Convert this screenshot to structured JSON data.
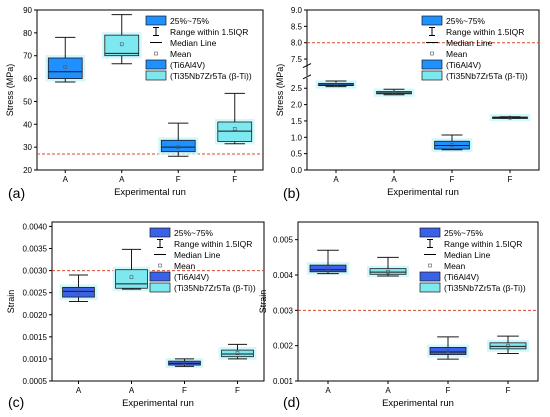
{
  "figure": {
    "legend_labels": [
      "25%~75%",
      "Range within 1.5IQR",
      "Median Line",
      "Mean",
      "(Ti6Al4V)",
      "(Ti35Nb7Zr5Ta (β-Ti))"
    ]
  },
  "colors": {
    "ti6al4v_box": "#1e90ff",
    "ti6al4v_box_dark": "#3a62e8",
    "beta_ti_box": "#7ee8f0",
    "highlight": "#c8f6fb",
    "threshold_line": "#d84a2a",
    "whisker": "#1a1a1a"
  },
  "chart_data": [
    {
      "panel": "(a)",
      "type": "box",
      "ylabel": "Stress (MPa)",
      "xlabel": "Experimental run",
      "categories": [
        "A",
        "A",
        "F",
        "F"
      ],
      "ylim": [
        20,
        90
      ],
      "yticks": [
        20,
        30,
        40,
        50,
        60,
        70,
        80,
        90
      ],
      "axis_break": null,
      "reference_line": 27,
      "legend_position": "top-right",
      "boxes": [
        {
          "group": "Ti6Al4V",
          "min": 58.5,
          "q1": 60,
          "median": 63,
          "q3": 69,
          "max": 78,
          "mean": 65
        },
        {
          "group": "Ti35Nb7Zr5Ta (β-Ti)",
          "min": 66.5,
          "q1": 70,
          "median": 71,
          "q3": 79,
          "max": 88,
          "mean": 75
        },
        {
          "group": "Ti6Al4V",
          "min": 26,
          "q1": 28,
          "median": 30,
          "q3": 33,
          "max": 40.5,
          "mean": 30
        },
        {
          "group": "Ti35Nb7Zr5Ta (β-Ti)",
          "min": 31.5,
          "q1": 32.5,
          "median": 37,
          "q3": 41,
          "max": 53.5,
          "mean": 38
        }
      ]
    },
    {
      "panel": "(b)",
      "type": "box",
      "ylabel": "Stress (MPa)",
      "xlabel": "Experimental run",
      "categories": [
        "A",
        "A",
        "F",
        "F"
      ],
      "ylim": [
        0,
        9
      ],
      "yticks": [
        0.0,
        0.5,
        1.0,
        1.5,
        2.0,
        2.5,
        7.5,
        8.0,
        8.5,
        9.0
      ],
      "ytick_labels": [
        "0.0",
        "0.5",
        "1.0",
        "1.5",
        "2.0",
        "2.5",
        "7.5",
        "8.0",
        "8.5",
        "9.0"
      ],
      "axis_break": [
        2.85,
        7.3
      ],
      "reference_line": 8.0,
      "legend_position": "top-right",
      "boxes": [
        {
          "group": "Ti6Al4V",
          "min": 2.55,
          "q1": 2.58,
          "median": 2.6,
          "q3": 2.65,
          "max": 2.72,
          "mean": 2.6
        },
        {
          "group": "Ti35Nb7Zr5Ta (β-Ti)",
          "min": 2.3,
          "q1": 2.33,
          "median": 2.36,
          "q3": 2.4,
          "max": 2.47,
          "mean": 2.36
        },
        {
          "group": "Ti6Al4V",
          "min": 0.62,
          "q1": 0.64,
          "median": 0.75,
          "q3": 0.88,
          "max": 1.07,
          "mean": 0.77
        },
        {
          "group": "Ti35Nb7Zr5Ta (β-Ti)",
          "min": 1.58,
          "q1": 1.59,
          "median": 1.6,
          "q3": 1.62,
          "max": 1.63,
          "mean": 1.6
        }
      ]
    },
    {
      "panel": "(c)",
      "type": "box",
      "ylabel": "Strain",
      "xlabel": "Experimental run",
      "categories": [
        "A",
        "A",
        "F",
        "F"
      ],
      "ylim": [
        0.0005,
        0.0041
      ],
      "yticks": [
        0.0005,
        0.001,
        0.0015,
        0.002,
        0.0025,
        0.003,
        0.0035,
        0.004
      ],
      "ytick_labels": [
        "0.0005",
        "0.0010",
        "0.0015",
        "0.0020",
        "0.0025",
        "0.0030",
        "0.0035",
        "0.0040"
      ],
      "axis_break": null,
      "reference_line": 0.003,
      "legend_position": "top-right",
      "boxes": [
        {
          "group": "Ti6Al4V",
          "min": 0.0023,
          "q1": 0.0024,
          "median": 0.00253,
          "q3": 0.00262,
          "max": 0.0029,
          "mean": 0.00251
        },
        {
          "group": "Ti35Nb7Zr5Ta (β-Ti)",
          "min": 0.00258,
          "q1": 0.0026,
          "median": 0.0027,
          "q3": 0.00302,
          "max": 0.00348,
          "mean": 0.00285
        },
        {
          "group": "Ti6Al4V",
          "min": 0.00083,
          "q1": 0.00086,
          "median": 0.0009,
          "q3": 0.00095,
          "max": 0.001,
          "mean": 0.0009
        },
        {
          "group": "Ti35Nb7Zr5Ta (β-Ti)",
          "min": 0.001,
          "q1": 0.00105,
          "median": 0.00111,
          "q3": 0.0012,
          "max": 0.00133,
          "mean": 0.00113
        }
      ]
    },
    {
      "panel": "(d)",
      "type": "box",
      "ylabel": "Strain",
      "xlabel": "Experimental run",
      "categories": [
        "A",
        "A",
        "F",
        "F"
      ],
      "ylim": [
        0.001,
        0.0055
      ],
      "yticks": [
        0.001,
        0.002,
        0.003,
        0.004,
        0.005
      ],
      "ytick_labels": [
        "0.001",
        "0.002",
        "0.003",
        "0.004",
        "0.005"
      ],
      "axis_break": null,
      "reference_line": 0.003,
      "legend_position": "top-right",
      "boxes": [
        {
          "group": "Ti6Al4V",
          "min": 0.00404,
          "q1": 0.00409,
          "median": 0.00415,
          "q3": 0.00428,
          "max": 0.0047,
          "mean": 0.00418
        },
        {
          "group": "Ti35Nb7Zr5Ta (β-Ti)",
          "min": 0.00397,
          "q1": 0.00402,
          "median": 0.00408,
          "q3": 0.00418,
          "max": 0.0045,
          "mean": 0.00409
        },
        {
          "group": "Ti6Al4V",
          "min": 0.00162,
          "q1": 0.00175,
          "median": 0.00182,
          "q3": 0.00195,
          "max": 0.00225,
          "mean": 0.00185
        },
        {
          "group": "Ti35Nb7Zr5Ta (β-Ti)",
          "min": 0.00178,
          "q1": 0.00191,
          "median": 0.00198,
          "q3": 0.00208,
          "max": 0.00227,
          "mean": 0.002
        }
      ]
    }
  ]
}
